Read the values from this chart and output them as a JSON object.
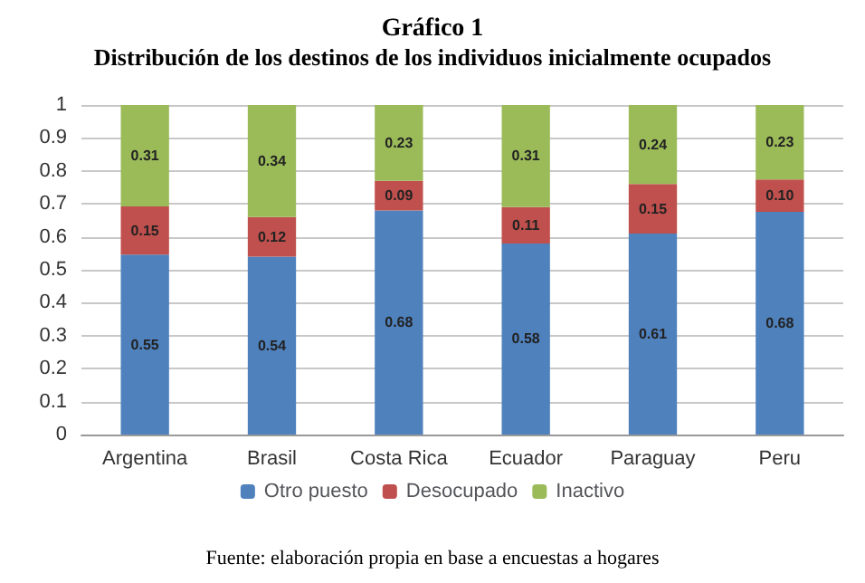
{
  "chart_data": {
    "type": "bar",
    "stacked": true,
    "title": "Gráfico 1",
    "subtitle": "Distribución de los destinos de los individuos inicialmente ocupados",
    "categories": [
      "Argentina",
      "Brasil",
      "Costa Rica",
      "Ecuador",
      "Paraguay",
      "Peru"
    ],
    "series": [
      {
        "name": "Otro puesto",
        "color": "#4f81bd",
        "values": [
          0.546,
          0.54,
          0.68,
          0.58,
          0.61,
          0.676
        ],
        "value_labels": [
          "0.55",
          "0.54",
          "0.68",
          "0.58",
          "0.61",
          "0.68"
        ]
      },
      {
        "name": "Desocupado",
        "color": "#c0504d",
        "values": [
          0.146,
          0.12,
          0.09,
          0.11,
          0.15,
          0.098
        ],
        "value_labels": [
          "0.15",
          "0.12",
          "0.09",
          "0.11",
          "0.15",
          "0.10"
        ]
      },
      {
        "name": "Inactivo",
        "color": "#9bbb59",
        "values": [
          0.308,
          0.34,
          0.23,
          0.31,
          0.24,
          0.226
        ],
        "value_labels": [
          "0.31",
          "0.34",
          "0.23",
          "0.31",
          "0.24",
          "0.23"
        ]
      }
    ],
    "ylim": [
      0,
      1
    ],
    "yticks": [
      0,
      0.1,
      0.2,
      0.3,
      0.4,
      0.5,
      0.6,
      0.7,
      0.8,
      0.9,
      1
    ],
    "grid": "y",
    "legend": "bottom",
    "annotations": [
      "Fuente: elaboración propia en base a encuestas a hogares"
    ]
  }
}
